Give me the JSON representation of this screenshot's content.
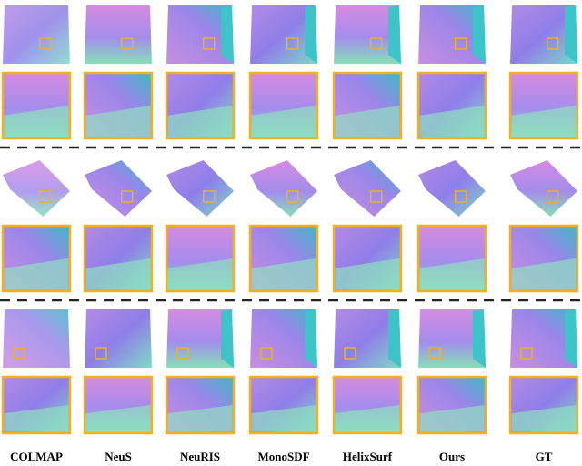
{
  "columns": [
    "COLMAP",
    "NeuS",
    "NeuRIS",
    "MonoSDF",
    "HelixSurf",
    "Ours",
    "GT"
  ]
}
